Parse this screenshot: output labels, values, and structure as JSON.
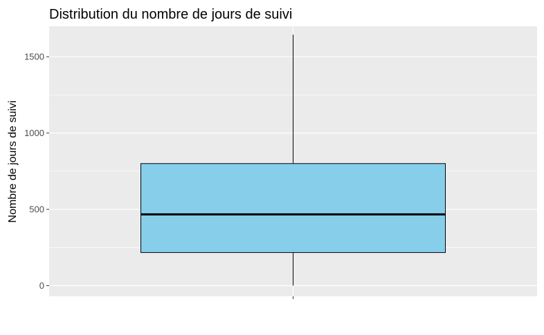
{
  "chart_data": {
    "type": "boxplot",
    "title": "Distribution du nombre de jours de suivi",
    "xlabel": "",
    "ylabel": "Nombre de jours de suivi",
    "ylim": [
      -70,
      1700
    ],
    "yticks": [
      0,
      500,
      1000,
      1500
    ],
    "ytick_labels": [
      "0",
      "500",
      "1000",
      "1500"
    ],
    "grid": true,
    "legend": "none",
    "box": {
      "min": 0,
      "q1": 217,
      "median": 467,
      "q3": 800,
      "max": 1645
    },
    "colors": {
      "panel": "#ebebeb",
      "grid": "#ffffff",
      "box_fill": "#87ceeb",
      "box_stroke": "#000000"
    }
  }
}
